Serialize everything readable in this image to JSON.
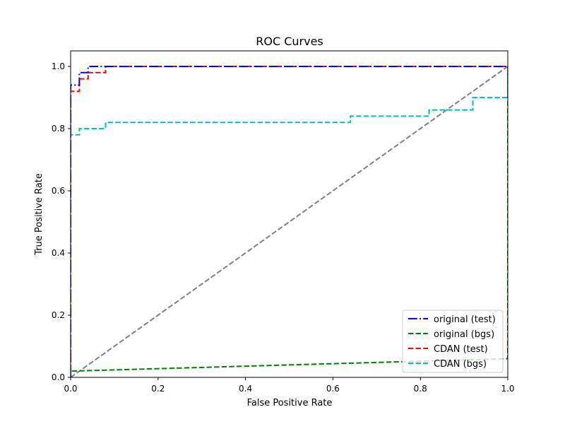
{
  "chart_data": {
    "type": "line",
    "title": "ROC Curves",
    "xlabel": "False Positive Rate",
    "ylabel": "True Positive Rate",
    "xlim": [
      0.0,
      1.0
    ],
    "ylim": [
      0.0,
      1.05
    ],
    "x_ticks": [
      "0.0",
      "0.2",
      "0.4",
      "0.6",
      "0.8",
      "1.0"
    ],
    "y_ticks": [
      "0.0",
      "0.2",
      "0.4",
      "0.6",
      "0.8",
      "1.0"
    ],
    "grid": false,
    "legend_position": "bottom-right",
    "series": [
      {
        "name": "original (test)",
        "color": "#0000ff",
        "style": "dashdot",
        "x": [
          0,
          0,
          0.02,
          0.02,
          0.04,
          0.04,
          1.0
        ],
        "y": [
          0,
          0.94,
          0.94,
          0.98,
          0.98,
          1.0,
          1.0
        ]
      },
      {
        "name": "original (bgs)",
        "color": "#008000",
        "style": "dashed",
        "x": [
          0,
          0,
          1.0,
          1.0,
          1.0
        ],
        "y": [
          0,
          0.02,
          0.06,
          0.12,
          1.0
        ]
      },
      {
        "name": "CDAN (test)",
        "color": "#ff0000",
        "style": "dashed",
        "x": [
          0,
          0,
          0.02,
          0.02,
          0.04,
          0.04,
          0.08,
          0.08,
          1.0
        ],
        "y": [
          0,
          0.92,
          0.92,
          0.96,
          0.96,
          0.98,
          0.98,
          1.0,
          1.0
        ]
      },
      {
        "name": "CDAN (bgs)",
        "color": "#00bfbf",
        "style": "dashed",
        "x": [
          0,
          0,
          0.02,
          0.02,
          0.08,
          0.08,
          0.64,
          0.64,
          0.82,
          0.82,
          0.92,
          0.92,
          1.0,
          1.0
        ],
        "y": [
          0,
          0.78,
          0.78,
          0.8,
          0.8,
          0.82,
          0.82,
          0.84,
          0.84,
          0.86,
          0.86,
          0.9,
          0.9,
          1.0
        ]
      }
    ],
    "reference_line": {
      "color": "#808080",
      "style": "dashed",
      "x": [
        0,
        1
      ],
      "y": [
        0,
        1
      ]
    }
  }
}
